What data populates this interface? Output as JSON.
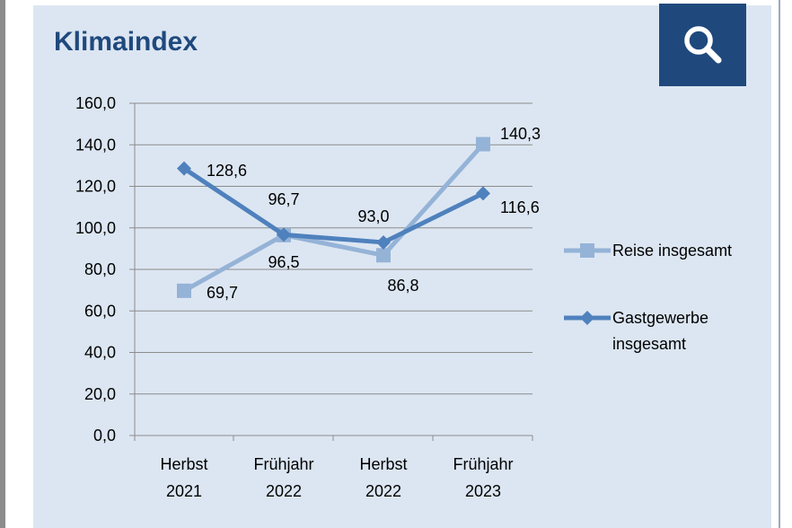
{
  "title": "Klimaindex",
  "colors": {
    "panel_bg": "#dce6f2",
    "title": "#1f497d",
    "button_bg": "#1f497d",
    "reise": "#95b3d7",
    "gastgewerbe": "#4f81bd"
  },
  "search_button": {
    "icon": "search-icon"
  },
  "chart_data": {
    "type": "line",
    "title": "Klimaindex",
    "categories": [
      {
        "line1": "Herbst",
        "line2": "2021"
      },
      {
        "line1": "Frühjahr",
        "line2": "2022"
      },
      {
        "line1": "Herbst",
        "line2": "2022"
      },
      {
        "line1": "Frühjahr",
        "line2": "2023"
      }
    ],
    "y_ticks": [
      "0,0",
      "20,0",
      "40,0",
      "60,0",
      "80,0",
      "100,0",
      "120,0",
      "140,0",
      "160,0"
    ],
    "ylim": [
      0,
      160
    ],
    "grid": true,
    "legend_position": "right",
    "series": [
      {
        "name": "Reise insgesamt",
        "legend_lines": [
          "Reise insgesamt"
        ],
        "marker": "square",
        "values": [
          69.7,
          96.5,
          86.8,
          140.3
        ],
        "labels": [
          "69,7",
          "96,5",
          "86,8",
          "140,3"
        ]
      },
      {
        "name": "Gastgewerbe insgesamt",
        "legend_lines": [
          "Gastgewerbe",
          "insgesamt"
        ],
        "marker": "diamond",
        "values": [
          128.6,
          96.7,
          93.0,
          116.6
        ],
        "labels": [
          "128,6",
          "96,7",
          "93,0",
          "116,6"
        ]
      }
    ]
  }
}
